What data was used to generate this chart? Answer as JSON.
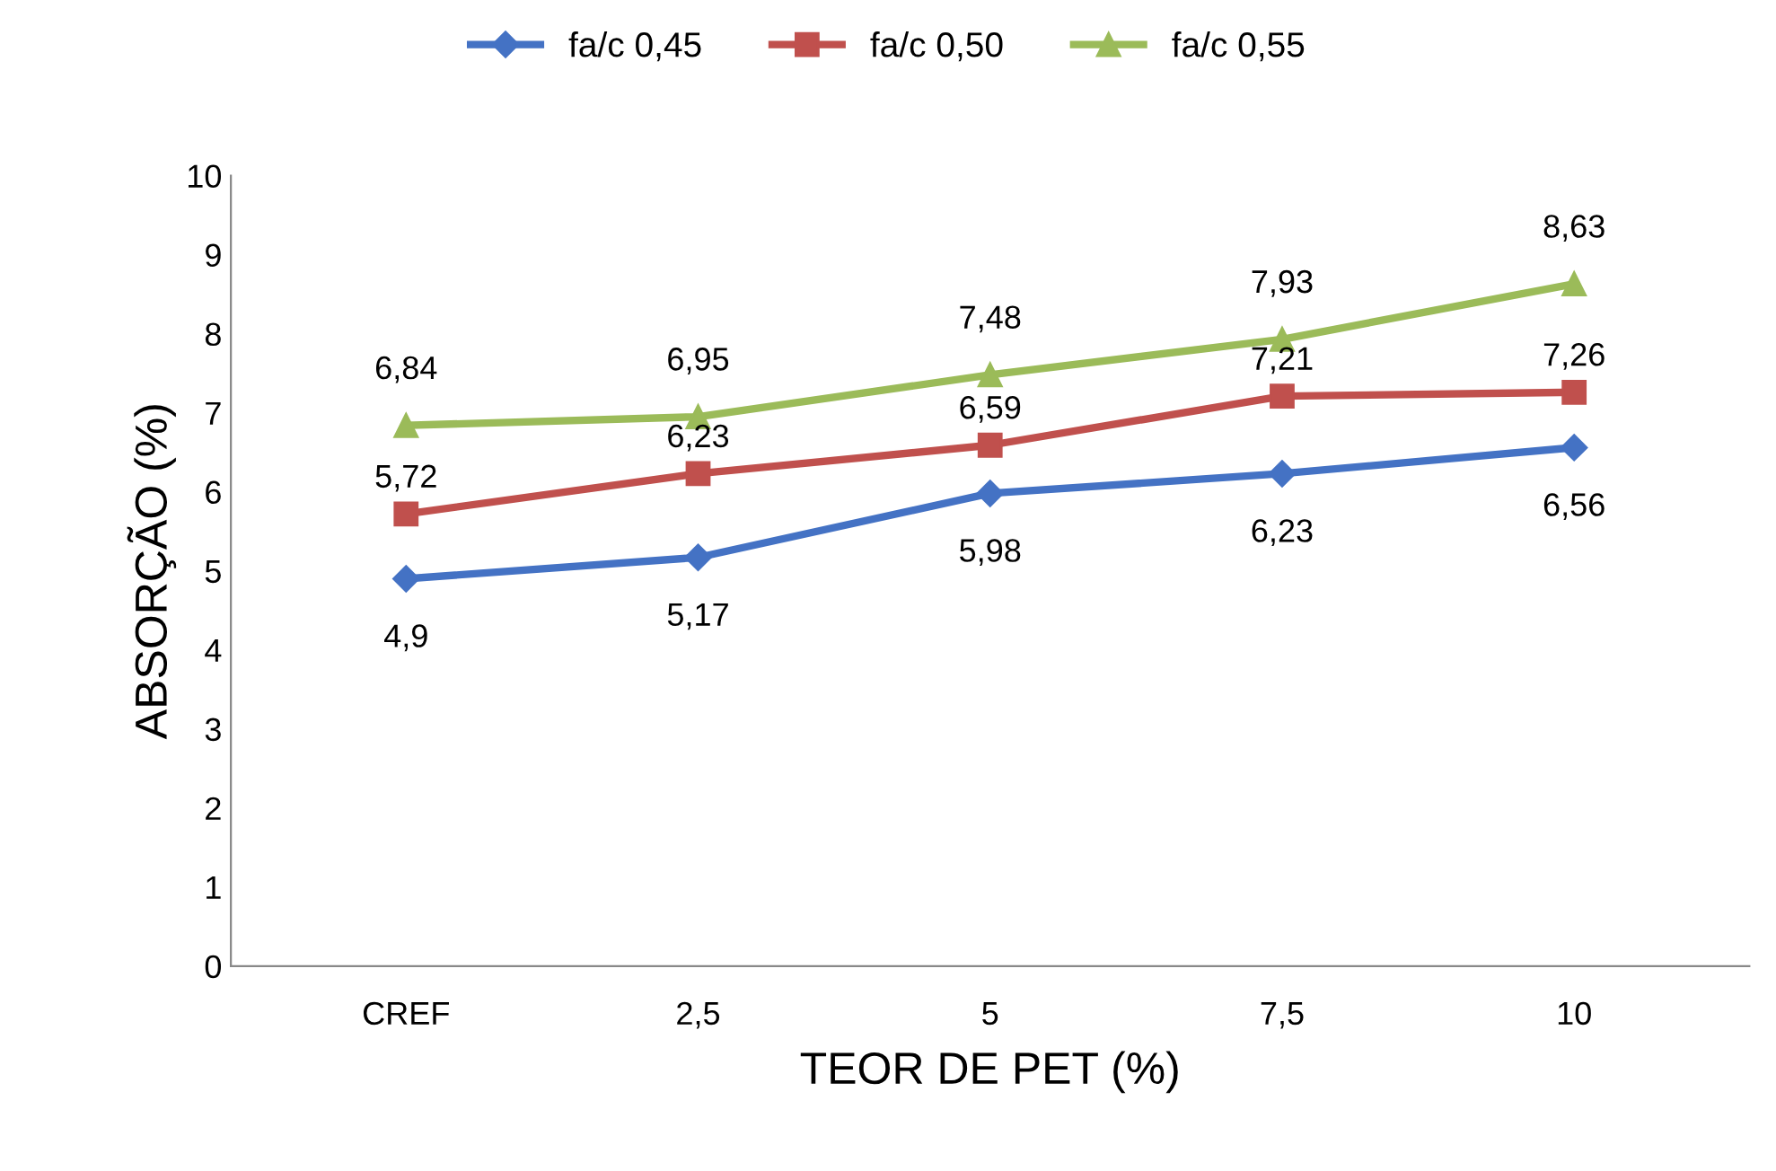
{
  "chart_data": {
    "type": "line",
    "xlabel": "TEOR DE PET (%)",
    "ylabel": "ABSORÇÃO (%)",
    "categories": [
      "CREF",
      "2,5",
      "5",
      "7,5",
      "10"
    ],
    "series": [
      {
        "name": "fa/c 0,45",
        "color": "#4472c4",
        "marker": "diamond",
        "values": [
          4.9,
          5.17,
          5.98,
          6.23,
          6.56
        ],
        "value_labels": [
          "4,9",
          "5,17",
          "5,98",
          "6,23",
          "6,56"
        ]
      },
      {
        "name": "fa/c 0,50",
        "color": "#c0504d",
        "marker": "square",
        "values": [
          5.72,
          6.23,
          6.59,
          7.21,
          7.26
        ],
        "value_labels": [
          "5,72",
          "6,23",
          "6,59",
          "7,21",
          "7,26"
        ]
      },
      {
        "name": "fa/c 0,55",
        "color": "#9bbb59",
        "marker": "triangle",
        "values": [
          6.84,
          6.95,
          7.48,
          7.93,
          8.63
        ],
        "value_labels": [
          "6,84",
          "6,95",
          "7,48",
          "7,93",
          "8,63"
        ]
      }
    ],
    "ylim": [
      0,
      10
    ],
    "yticks": [
      0,
      1,
      2,
      3,
      4,
      5,
      6,
      7,
      8,
      9,
      10
    ],
    "grid": false,
    "legend": "top",
    "line_style": "solid"
  }
}
